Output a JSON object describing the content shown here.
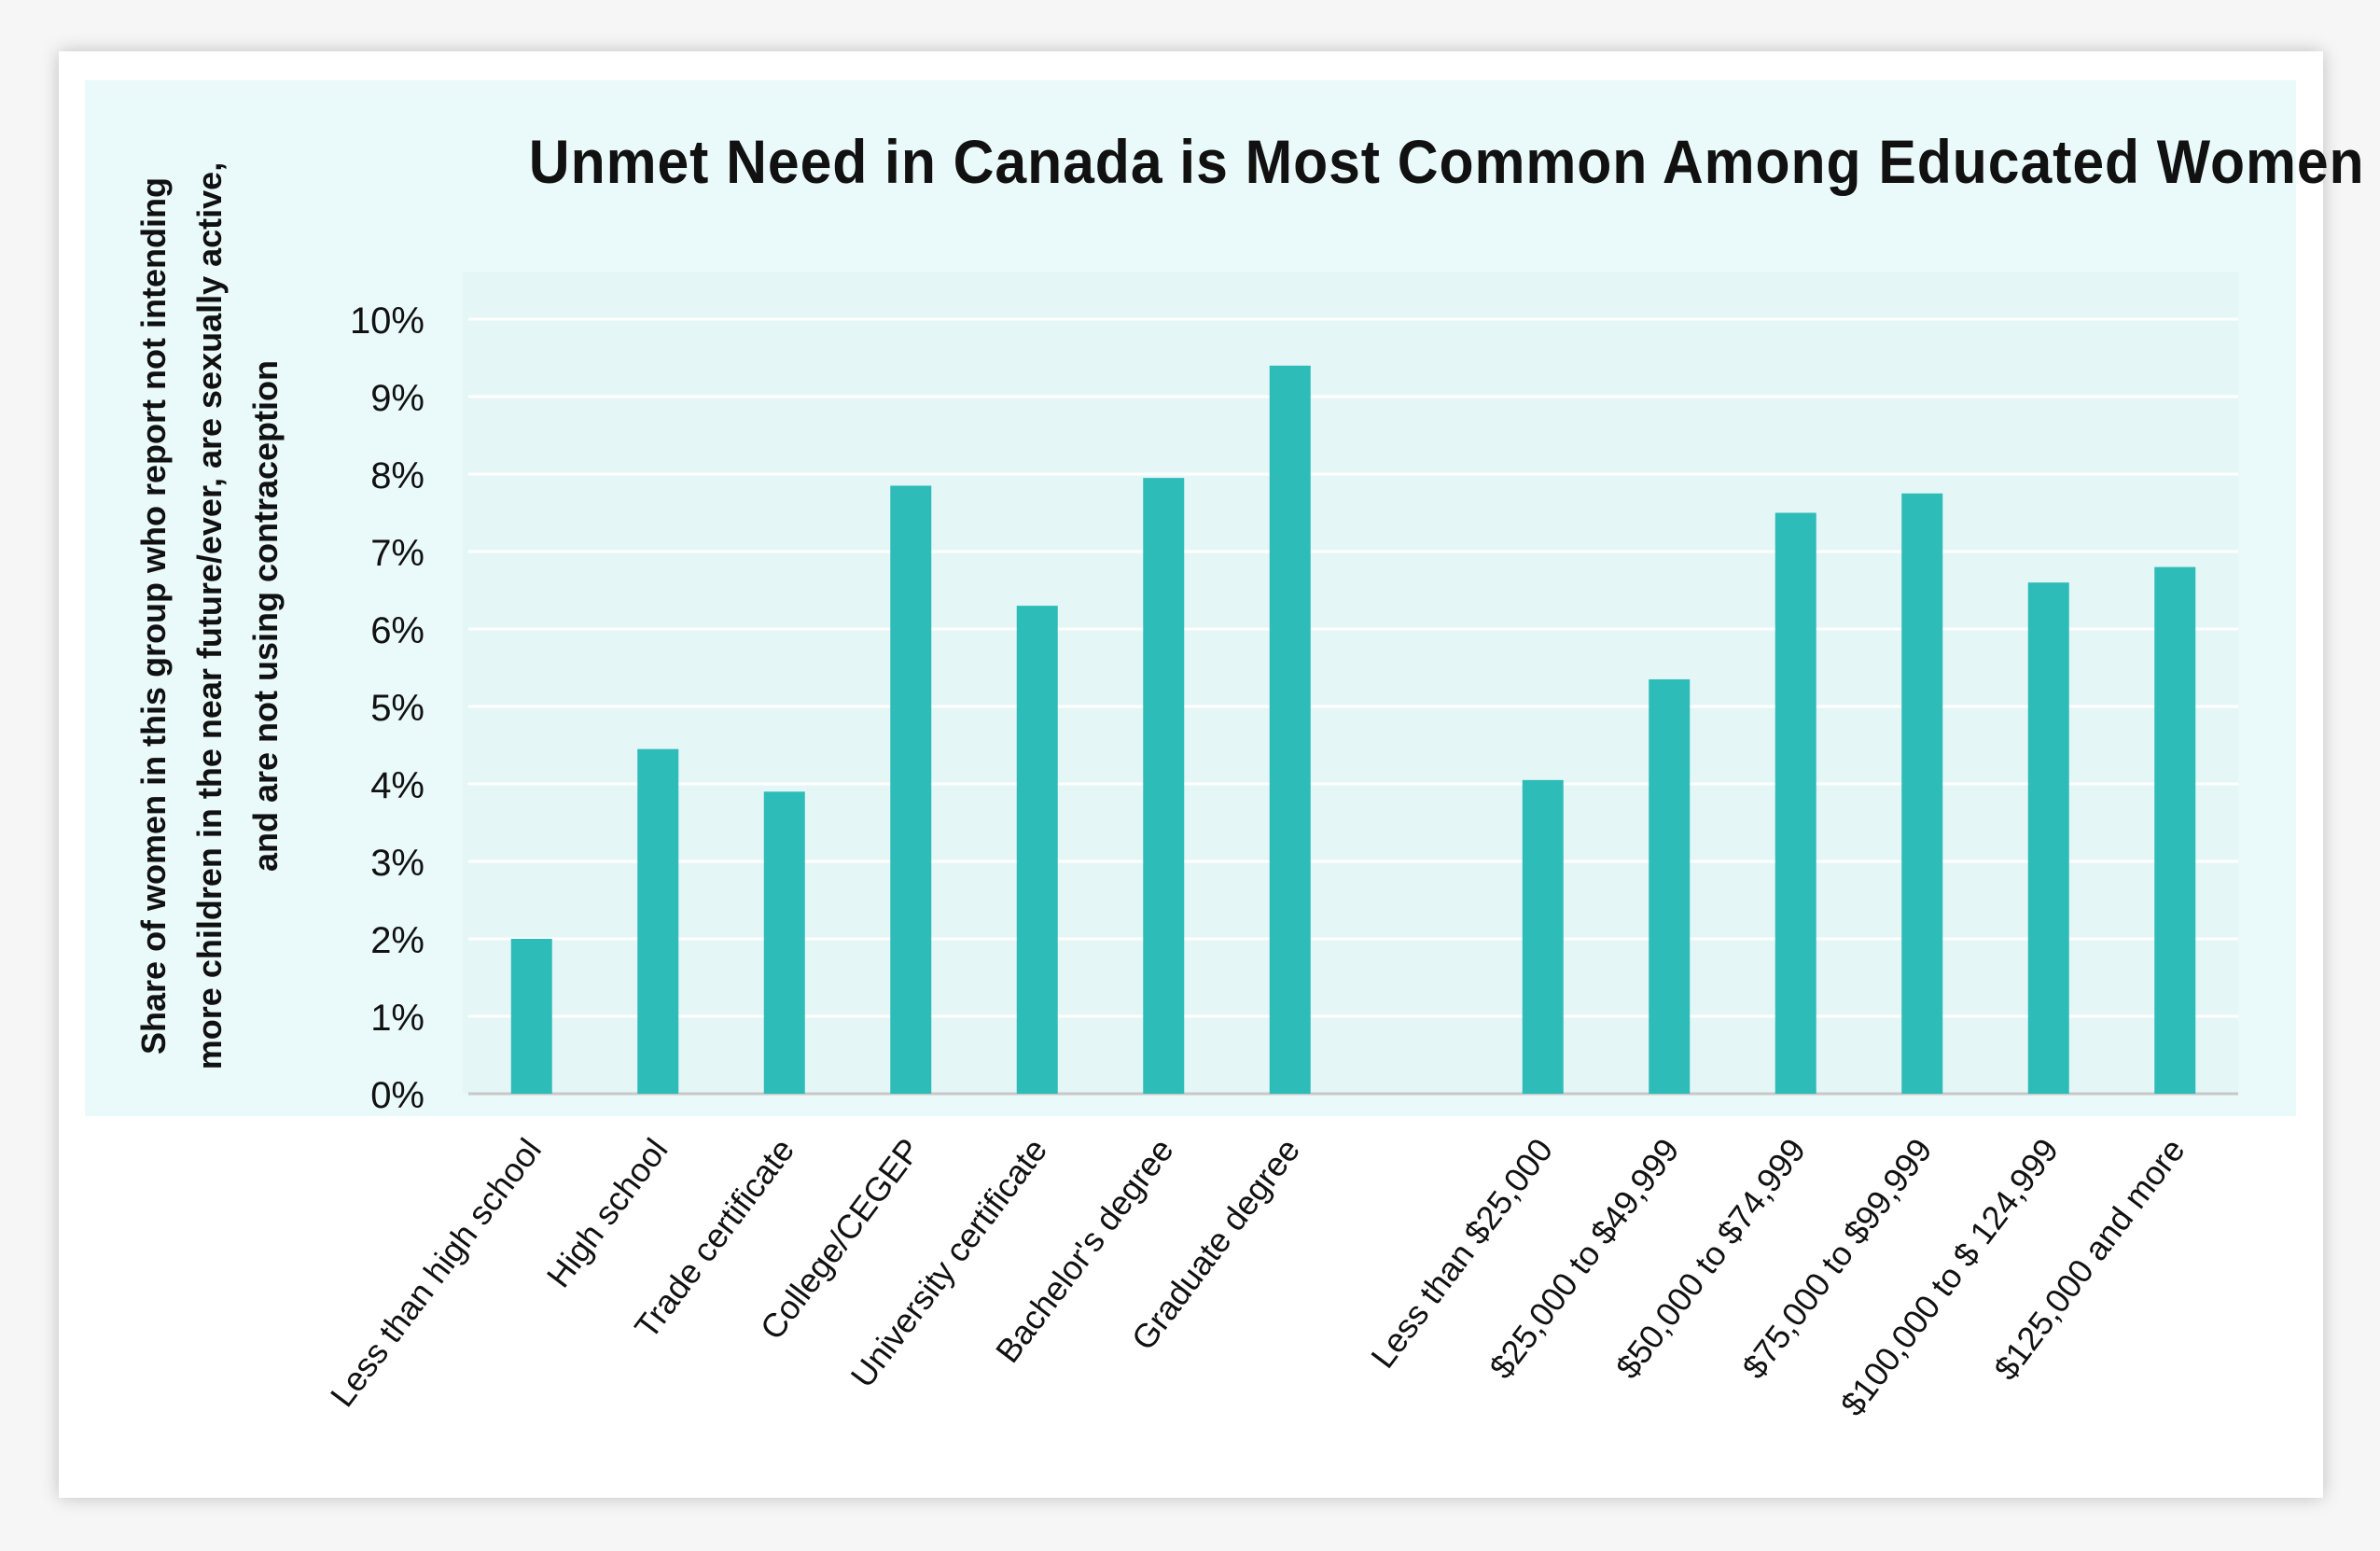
{
  "chart_data": {
    "type": "bar",
    "title": "Unmet Need in Canada is Most Common Among Educated Women",
    "ylabel": "Share of women in this group who report not intending more children in the near future/ever, are sexually active, and are not using contraception",
    "xlabel": "",
    "ylim": [
      0,
      10
    ],
    "yticks": [
      "0%",
      "1%",
      "2%",
      "3%",
      "4%",
      "5%",
      "6%",
      "7%",
      "8%",
      "9%",
      "10%"
    ],
    "grid": true,
    "legend": "none",
    "bar_color": "#2ebcb9",
    "categories": [
      "Less than high school",
      "High school",
      "Trade certificate",
      "College/CEGEP",
      "University certificate",
      "Bachelor's degree",
      "Graduate degree",
      "",
      "Less than $25,000",
      "$25,000 to $49,999",
      "$50,000 to $74,999",
      "$75,000 to $99,999",
      "$100,000 to $ 124,999",
      "$125,000 and more"
    ],
    "values": [
      2.0,
      4.45,
      3.9,
      7.85,
      6.3,
      7.95,
      9.4,
      null,
      4.05,
      5.35,
      7.5,
      7.75,
      6.6,
      6.8
    ]
  }
}
